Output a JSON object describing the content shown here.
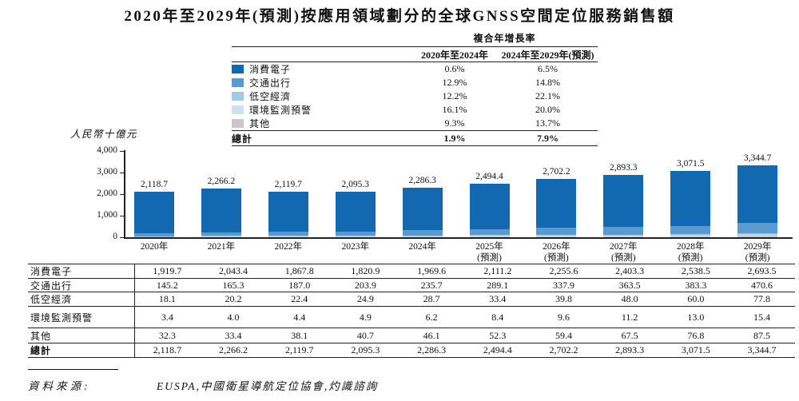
{
  "title": "2020年至2029年(預測)按應用領域劃分的全球GNSS空間定位服務銷售額",
  "cagr_table": {
    "header": "複合年增長率",
    "col1": "2020年至2024年",
    "col2": "2024年至2029年(預測)",
    "rows": [
      {
        "label": "消費電子",
        "color": "#1268b1",
        "v1": "0.6%",
        "v2": "6.5%"
      },
      {
        "label": "交通出行",
        "color": "#5b9ace",
        "v1": "12.9%",
        "v2": "14.8%"
      },
      {
        "label": "低空經濟",
        "color": "#9ecbe7",
        "v1": "12.2%",
        "v2": "22.1%"
      },
      {
        "label": "環境監測預警",
        "color": "#cfe0f2",
        "v1": "16.1%",
        "v2": "20.0%"
      },
      {
        "label": "其他",
        "color": "#c8c8c8",
        "v1": "9.3%",
        "v2": "13.7%"
      }
    ],
    "total": {
      "label": "總計",
      "v1": "1.9%",
      "v2": "7.9%"
    }
  },
  "chart_data": {
    "type": "bar",
    "stacked": true,
    "title": "2020年至2029年(預測)按應用領域劃分的全球GNSS空間定位服務銷售額",
    "ylabel": "人民幣十億元",
    "ylim": [
      0,
      4000
    ],
    "yticks": [
      0,
      1000,
      2000,
      3000,
      4000
    ],
    "ytick_labels": [
      "0",
      "1,000",
      "2,000",
      "3,000",
      "4,000"
    ],
    "grid": false,
    "legend_position": "top-table",
    "categories": [
      {
        "year": "2020年",
        "note": ""
      },
      {
        "year": "2021年",
        "note": ""
      },
      {
        "year": "2022年",
        "note": ""
      },
      {
        "year": "2023年",
        "note": ""
      },
      {
        "year": "2024年",
        "note": ""
      },
      {
        "year": "2025年",
        "note": "(預測)"
      },
      {
        "year": "2026年",
        "note": "(預測)"
      },
      {
        "year": "2027年",
        "note": "(預測)"
      },
      {
        "year": "2028年",
        "note": "(預測)"
      },
      {
        "year": "2029年",
        "note": "(預測)"
      }
    ],
    "series": [
      {
        "name": "消費電子",
        "color": "#1268b1",
        "values": [
          1919.7,
          2043.4,
          1867.8,
          1820.9,
          1969.6,
          2111.2,
          2255.6,
          2403.3,
          2538.5,
          2693.5
        ]
      },
      {
        "name": "交通出行",
        "color": "#5b9ace",
        "values": [
          145.2,
          165.3,
          187.0,
          203.9,
          235.7,
          289.1,
          337.9,
          363.5,
          383.3,
          470.6
        ]
      },
      {
        "name": "低空經濟",
        "color": "#9ecbe7",
        "values": [
          18.1,
          20.2,
          22.4,
          24.9,
          28.7,
          33.4,
          39.8,
          48.0,
          60.0,
          77.8
        ]
      },
      {
        "name": "環境監測預警",
        "color": "#cfe0f2",
        "values": [
          3.4,
          4.0,
          4.4,
          4.9,
          6.2,
          8.4,
          9.6,
          11.2,
          13.0,
          15.4
        ]
      },
      {
        "name": "其他",
        "color": "#c8c8c8",
        "values": [
          32.3,
          33.4,
          38.1,
          40.7,
          46.1,
          52.3,
          59.4,
          67.5,
          76.8,
          87.5
        ]
      }
    ],
    "totals_labels": [
      "2,118.7",
      "2,266.2",
      "2,119.7",
      "2,095.3",
      "2,286.3",
      "2,494.4",
      "2,702.2",
      "2,893.3",
      "3,071.5",
      "3,344.7"
    ]
  },
  "data_table": {
    "rows": [
      {
        "label": "消費電子",
        "bold": false,
        "values": [
          "1,919.7",
          "2,043.4",
          "1,867.8",
          "1,820.9",
          "1,969.6",
          "2,111.2",
          "2,255.6",
          "2,403.3",
          "2,538.5",
          "2,693.5"
        ]
      },
      {
        "label": "交通出行",
        "bold": false,
        "values": [
          "145.2",
          "165.3",
          "187.0",
          "203.9",
          "235.7",
          "289.1",
          "337.9",
          "363.5",
          "383.3",
          "470.6"
        ]
      },
      {
        "label": "低空經濟",
        "bold": false,
        "values": [
          "18.1",
          "20.2",
          "22.4",
          "24.9",
          "28.7",
          "33.4",
          "39.8",
          "48.0",
          "60.0",
          "77.8"
        ]
      },
      {
        "label": "環境監測預警",
        "bold": false,
        "values": [
          "3.4",
          "4.0",
          "4.4",
          "4.9",
          "6.2",
          "8.4",
          "9.6",
          "11.2",
          "13.0",
          "15.4"
        ]
      },
      {
        "label": "其他",
        "bold": false,
        "values": [
          "32.3",
          "33.4",
          "38.1",
          "40.7",
          "46.1",
          "52.3",
          "59.4",
          "67.5",
          "76.8",
          "87.5"
        ]
      },
      {
        "label": "總計",
        "bold": true,
        "values": [
          "2,118.7",
          "2,266.2",
          "2,119.7",
          "2,095.3",
          "2,286.3",
          "2,494.4",
          "2,702.2",
          "2,893.3",
          "3,071.5",
          "3,344.7"
        ]
      }
    ]
  },
  "source": {
    "label": "資料來源:",
    "text": "EUSPA,中國衛星導航定位協會,灼識諮詢"
  }
}
